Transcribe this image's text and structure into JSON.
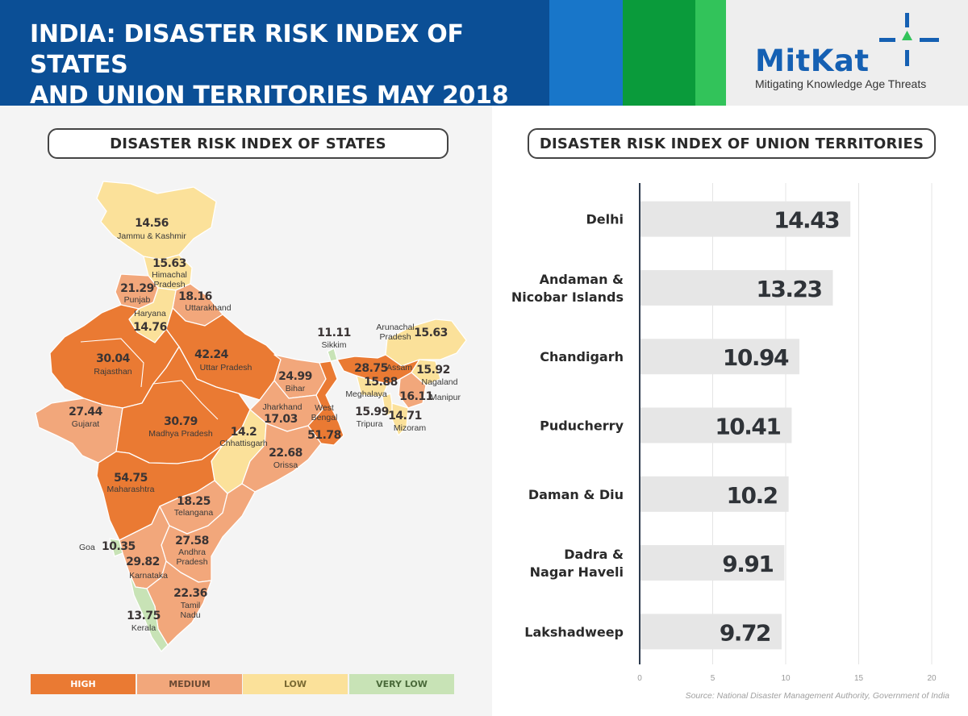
{
  "header": {
    "title_line1": "INDIA: DISASTER RISK INDEX OF STATES",
    "title_line2": "AND UNION TERRITORIES MAY 2018",
    "stripe_colors": [
      "#1876c9",
      "#0a9b3b",
      "#32c35a"
    ]
  },
  "logo": {
    "name": "MitKat",
    "tagline": "Mitigating Knowledge Age Threats"
  },
  "states_section": {
    "title": "DISASTER RISK INDEX OF STATES",
    "categories": {
      "high": {
        "label": "HIGH",
        "color": "#ea7a33"
      },
      "medium": {
        "label": "MEDIUM",
        "color": "#f2a77b"
      },
      "low": {
        "label": "LOW",
        "color": "#fbe19a"
      },
      "very_low": {
        "label": "VERY LOW",
        "color": "#c8e3b6"
      }
    },
    "states": [
      {
        "name": "Jammu & Kashmir",
        "value": "14.56",
        "category": "low"
      },
      {
        "name": "Himachal Pradesh",
        "value": "15.63",
        "category": "low"
      },
      {
        "name": "Punjab",
        "value": "21.29",
        "category": "medium"
      },
      {
        "name": "Haryana",
        "value": "14.76",
        "category": "low"
      },
      {
        "name": "Uttarakhand",
        "value": "18.16",
        "category": "medium"
      },
      {
        "name": "Rajasthan",
        "value": "30.04",
        "category": "high"
      },
      {
        "name": "Uttar Pradesh",
        "value": "42.24",
        "category": "high"
      },
      {
        "name": "Bihar",
        "value": "24.99",
        "category": "medium"
      },
      {
        "name": "Sikkim",
        "value": "11.11",
        "category": "very_low"
      },
      {
        "name": "Arunachal Pradesh",
        "value": "15.63",
        "category": "low"
      },
      {
        "name": "Assam",
        "value": "28.75",
        "category": "high"
      },
      {
        "name": "Nagaland",
        "value": "15.92",
        "category": "low"
      },
      {
        "name": "Meghalaya",
        "value": "15.88",
        "category": "low"
      },
      {
        "name": "Manipur",
        "value": "16.11",
        "category": "medium"
      },
      {
        "name": "Tripura",
        "value": "15.99",
        "category": "low"
      },
      {
        "name": "Mizoram",
        "value": "14.71",
        "category": "low"
      },
      {
        "name": "Gujarat",
        "value": "27.44",
        "category": "medium"
      },
      {
        "name": "Madhya Pradesh",
        "value": "30.79",
        "category": "high"
      },
      {
        "name": "Chhattisgarh",
        "value": "14.2",
        "category": "low"
      },
      {
        "name": "Jharkhand",
        "value": "17.03",
        "category": "medium"
      },
      {
        "name": "West Bengal",
        "value": "51.78",
        "category": "high"
      },
      {
        "name": "Orissa",
        "value": "22.68",
        "category": "medium"
      },
      {
        "name": "Maharashtra",
        "value": "54.75",
        "category": "high"
      },
      {
        "name": "Telangana",
        "value": "18.25",
        "category": "medium"
      },
      {
        "name": "Goa",
        "value": "10.35",
        "category": "very_low"
      },
      {
        "name": "Andhra Pradesh",
        "value": "27.58",
        "category": "medium"
      },
      {
        "name": "Karnataka",
        "value": "29.82",
        "category": "medium"
      },
      {
        "name": "Tamil Nadu",
        "value": "22.36",
        "category": "medium"
      },
      {
        "name": "Kerala",
        "value": "13.75",
        "category": "very_low"
      }
    ]
  },
  "ut_section": {
    "title": "DISASTER RISK INDEX OF UNION TERRITORIES"
  },
  "chart_data": {
    "type": "bar",
    "orientation": "horizontal",
    "title": "DISASTER RISK INDEX OF UNION TERRITORIES",
    "categories": [
      [
        "Delhi"
      ],
      [
        "Andaman &",
        "Nicobar Islands"
      ],
      [
        "Chandigarh"
      ],
      [
        "Puducherry"
      ],
      [
        "Daman & Diu"
      ],
      [
        "Dadra &",
        "Nagar Haveli"
      ],
      [
        "Lakshadweep"
      ]
    ],
    "values": [
      14.43,
      13.23,
      10.94,
      10.41,
      10.2,
      9.91,
      9.72
    ],
    "value_labels": [
      "14.43",
      "13.23",
      "10.94",
      "10.41",
      "10.2",
      "9.91",
      "9.72"
    ],
    "xlim": [
      0,
      20
    ],
    "xticks": [
      0,
      5,
      10,
      15,
      20
    ],
    "bar_color": "#e6e6e6",
    "grid": true
  },
  "source": "Source: National Disaster Management Authority, Government of India"
}
